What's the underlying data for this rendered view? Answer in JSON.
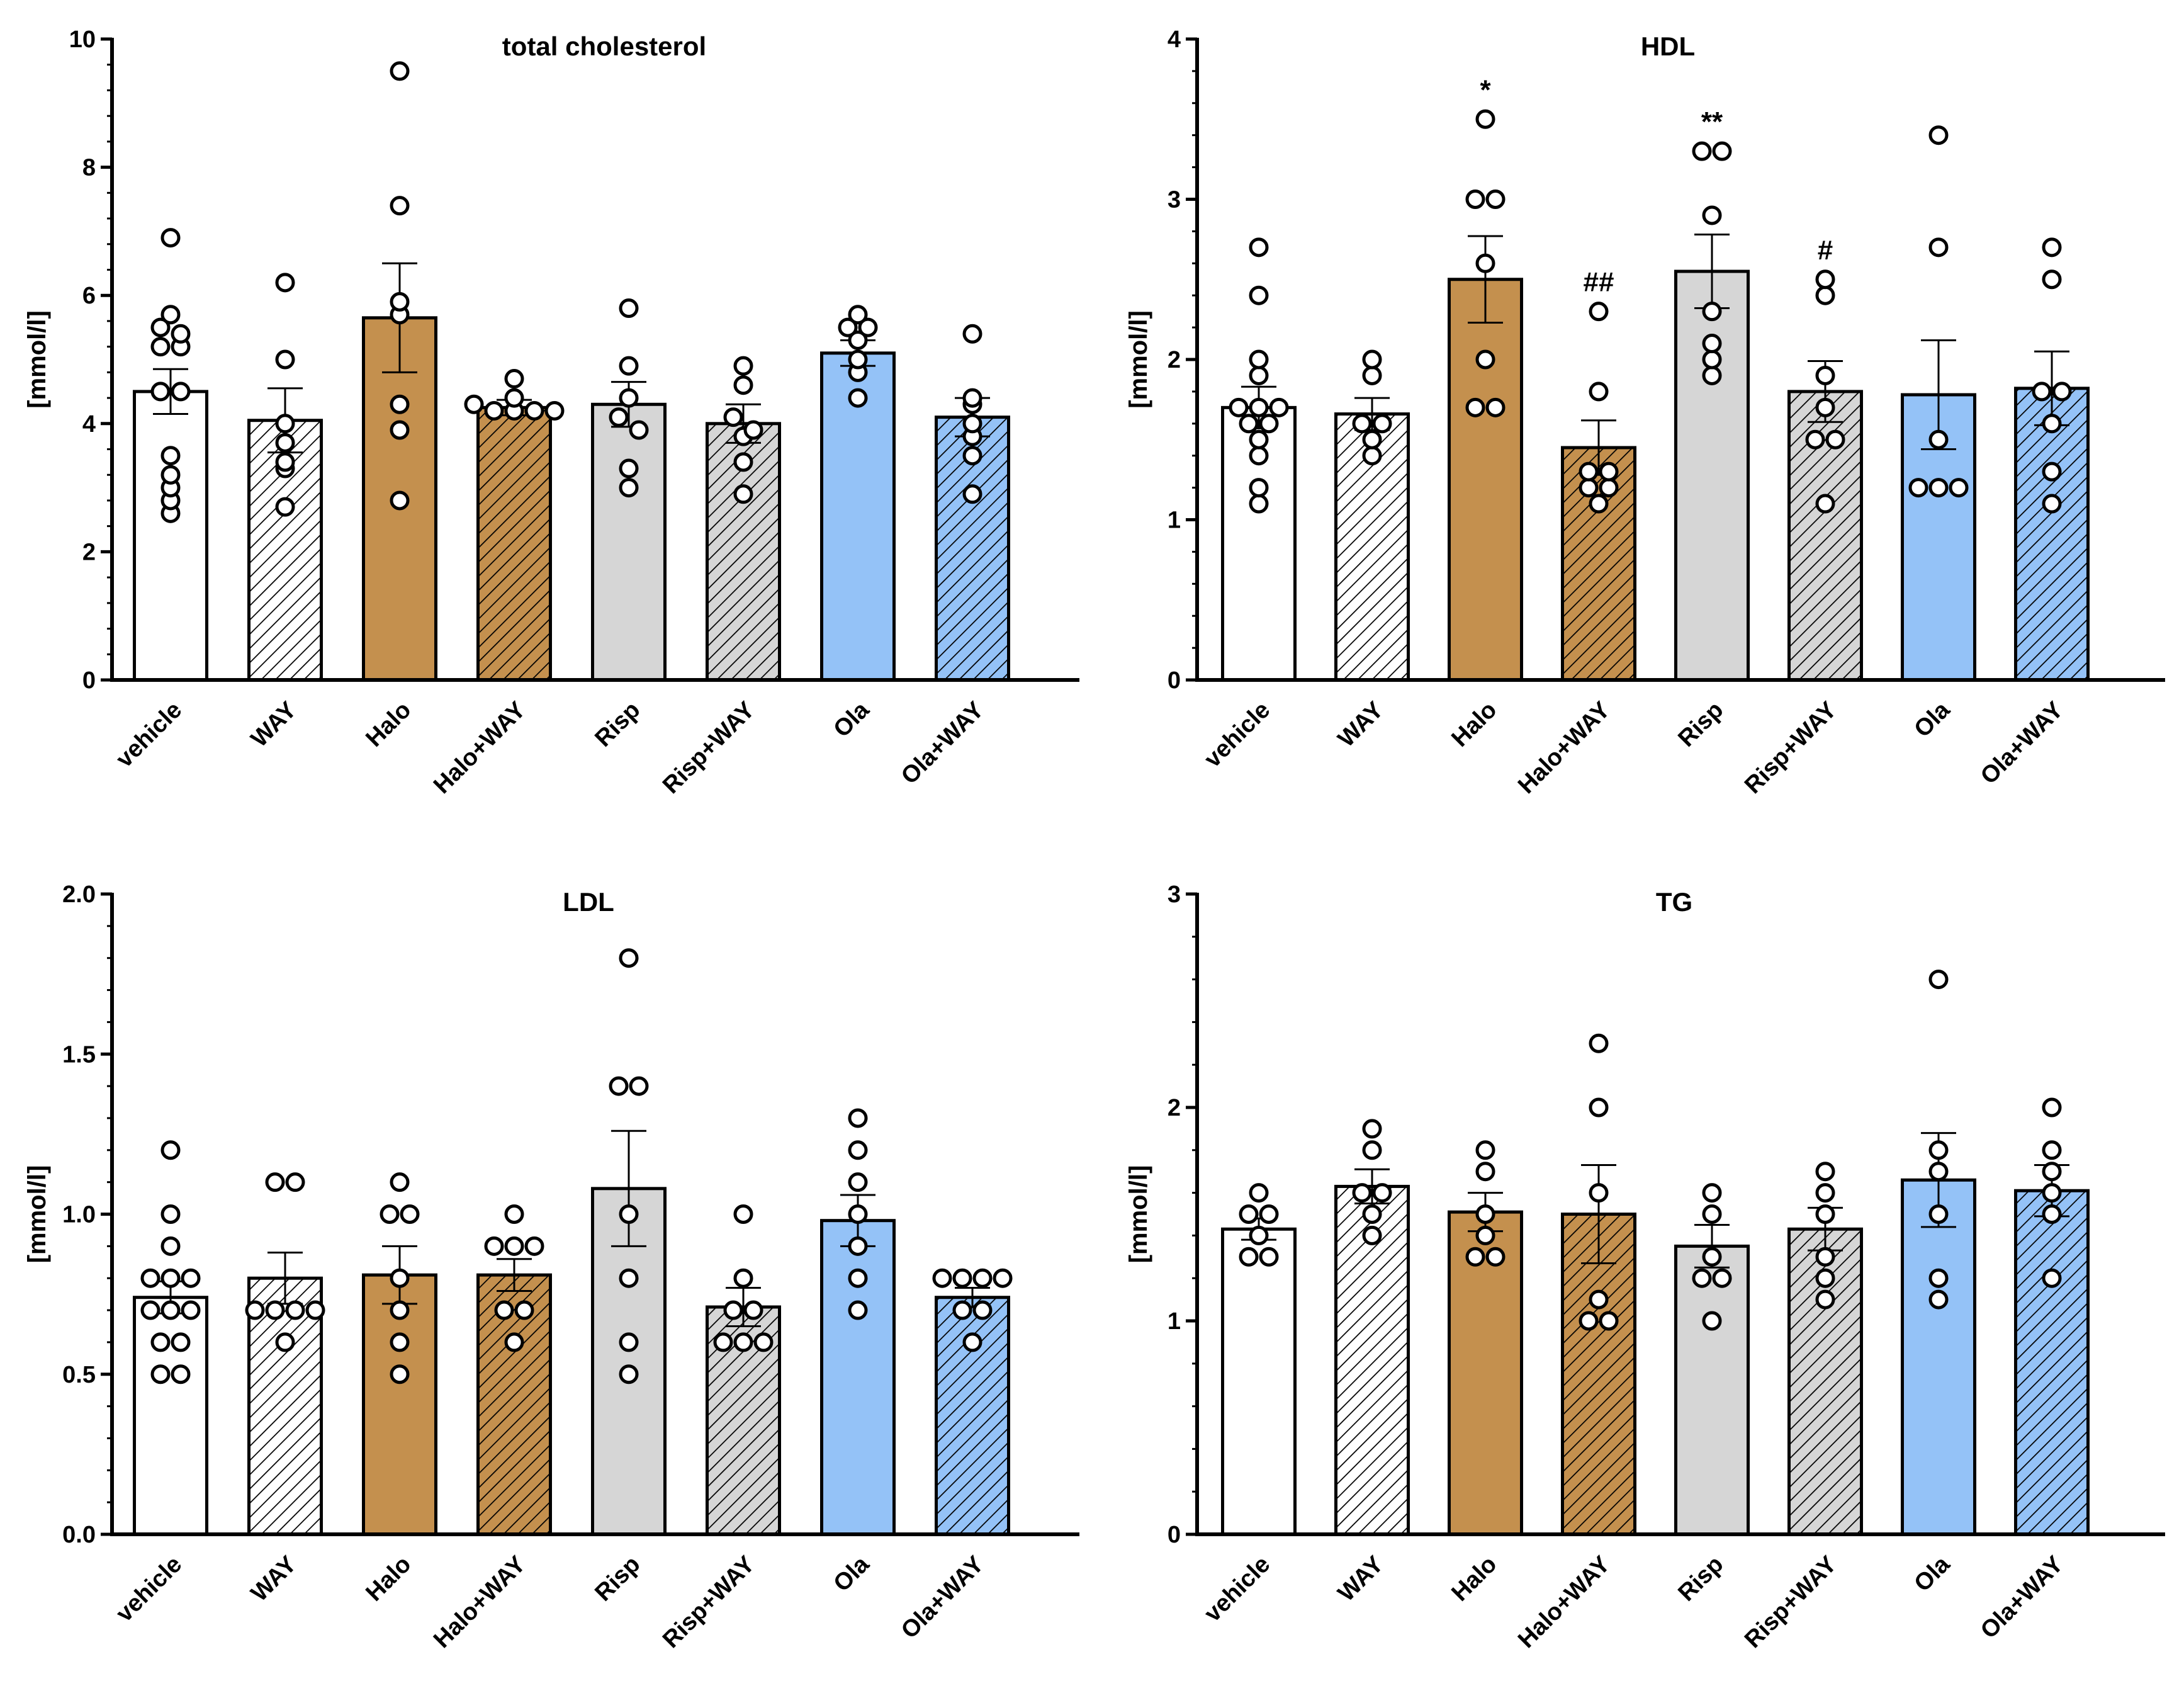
{
  "colors": {
    "vehicle": "#ffffff",
    "WAY": "#ffffff",
    "Halo": "#c4904e",
    "Halo+WAY": "#c4904e",
    "Risp": "#d6d6d6",
    "Risp+WAY": "#d6d6d6",
    "Ola": "#94c2f7",
    "Ola+WAY": "#94c2f7",
    "hatch": "#000000"
  },
  "chart_data": [
    {
      "type": "bar",
      "title": "total cholesterol",
      "ylabel": "[mmol/l]",
      "categories": [
        "vehicle",
        "WAY",
        "Halo",
        "Halo+WAY",
        "Risp",
        "Risp+WAY",
        "Ola",
        "Ola+WAY"
      ],
      "hatched": [
        false,
        true,
        false,
        true,
        false,
        true,
        false,
        true
      ],
      "ylim": [
        0,
        10
      ],
      "yticks": [
        0,
        2,
        4,
        6,
        8,
        10
      ],
      "ytick_labels": [
        "0",
        "2",
        "4",
        "6",
        "8",
        "10"
      ],
      "values": [
        4.5,
        4.05,
        5.65,
        4.25,
        4.3,
        4.0,
        5.1,
        4.1
      ],
      "sem": [
        0.35,
        0.5,
        0.85,
        0.12,
        0.35,
        0.3,
        0.2,
        0.3
      ],
      "points": [
        [
          6.9,
          5.7,
          5.5,
          5.4,
          5.2,
          5.2,
          4.5,
          4.5,
          3.5,
          3.2,
          3.0,
          2.8,
          2.6
        ],
        [
          6.2,
          5.0,
          4.0,
          3.7,
          3.4,
          3.3,
          2.7
        ],
        [
          9.5,
          7.4,
          5.9,
          5.7,
          4.3,
          3.9,
          2.8
        ],
        [
          4.7,
          4.4,
          4.3,
          4.2,
          4.2,
          4.2,
          4.2
        ],
        [
          5.8,
          4.9,
          4.4,
          4.1,
          3.9,
          3.3,
          3.0
        ],
        [
          4.9,
          4.6,
          4.1,
          3.9,
          3.8,
          3.4,
          2.9
        ],
        [
          5.7,
          5.5,
          5.5,
          5.3,
          5.0,
          4.8,
          4.4
        ],
        [
          5.4,
          4.4,
          4.3,
          4.0,
          3.8,
          3.5,
          2.9
        ]
      ],
      "annotations": [
        "",
        "",
        "",
        "",
        "",
        "",
        "",
        ""
      ]
    },
    {
      "type": "bar",
      "title": "HDL",
      "ylabel": "[mmol/l]",
      "categories": [
        "vehicle",
        "WAY",
        "Halo",
        "Halo+WAY",
        "Risp",
        "Risp+WAY",
        "Ola",
        "Ola+WAY"
      ],
      "hatched": [
        false,
        true,
        false,
        true,
        false,
        true,
        false,
        true
      ],
      "ylim": [
        0,
        4
      ],
      "yticks": [
        0,
        1,
        2,
        3,
        4
      ],
      "ytick_labels": [
        "0",
        "1",
        "2",
        "3",
        "4"
      ],
      "values": [
        1.7,
        1.66,
        2.5,
        1.45,
        2.55,
        1.8,
        1.78,
        1.82
      ],
      "sem": [
        0.13,
        0.1,
        0.27,
        0.17,
        0.23,
        0.19,
        0.34,
        0.23
      ],
      "points": [
        [
          2.7,
          2.4,
          2.0,
          1.9,
          1.7,
          1.7,
          1.7,
          1.6,
          1.6,
          1.5,
          1.4,
          1.2,
          1.1
        ],
        [
          2.0,
          1.9,
          1.6,
          1.6,
          1.5,
          1.4
        ],
        [
          3.5,
          3.0,
          3.0,
          2.6,
          2.0,
          1.7,
          1.7
        ],
        [
          2.3,
          1.8,
          1.3,
          1.3,
          1.2,
          1.2,
          1.1
        ],
        [
          3.3,
          3.3,
          2.9,
          2.3,
          2.1,
          2.0,
          1.9
        ],
        [
          2.5,
          2.4,
          1.9,
          1.7,
          1.5,
          1.5,
          1.1
        ],
        [
          3.4,
          2.7,
          1.5,
          1.2,
          1.2,
          1.2
        ],
        [
          2.7,
          2.5,
          1.8,
          1.8,
          1.6,
          1.3,
          1.1
        ]
      ],
      "annotations": [
        "",
        "",
        "*",
        "##",
        "**",
        "#",
        "",
        ""
      ]
    },
    {
      "type": "bar",
      "title": "LDL",
      "ylabel": "[mmol/l]",
      "categories": [
        "vehicle",
        "WAY",
        "Halo",
        "Halo+WAY",
        "Risp",
        "Risp+WAY",
        "Ola",
        "Ola+WAY"
      ],
      "hatched": [
        false,
        true,
        false,
        true,
        false,
        true,
        false,
        true
      ],
      "ylim": [
        0,
        2
      ],
      "yticks": [
        0,
        0.5,
        1.0,
        1.5,
        2.0
      ],
      "ytick_labels": [
        "0.0",
        "0.5",
        "1.0",
        "1.5",
        "2.0"
      ],
      "values": [
        0.74,
        0.8,
        0.81,
        0.81,
        1.08,
        0.71,
        0.98,
        0.74
      ],
      "sem": [
        0.05,
        0.08,
        0.09,
        0.05,
        0.18,
        0.06,
        0.08,
        0.03
      ],
      "points": [
        [
          1.2,
          1.0,
          0.9,
          0.8,
          0.8,
          0.8,
          0.7,
          0.7,
          0.7,
          0.6,
          0.6,
          0.5,
          0.5
        ],
        [
          1.1,
          1.1,
          0.7,
          0.7,
          0.7,
          0.7,
          0.6
        ],
        [
          1.1,
          1.0,
          1.0,
          0.8,
          0.7,
          0.6,
          0.5
        ],
        [
          1.0,
          0.9,
          0.9,
          0.9,
          0.7,
          0.7,
          0.6
        ],
        [
          1.8,
          1.4,
          1.4,
          1.0,
          0.8,
          0.6,
          0.5
        ],
        [
          1.0,
          0.8,
          0.7,
          0.7,
          0.6,
          0.6,
          0.6
        ],
        [
          1.3,
          1.2,
          1.1,
          1.0,
          0.9,
          0.8,
          0.7
        ],
        [
          0.8,
          0.8,
          0.8,
          0.8,
          0.7,
          0.7,
          0.6
        ]
      ],
      "annotations": [
        "",
        "",
        "",
        "",
        "",
        "",
        "",
        ""
      ]
    },
    {
      "type": "bar",
      "title": "TG",
      "ylabel": "[mmol/l]",
      "categories": [
        "vehicle",
        "WAY",
        "Halo",
        "Halo+WAY",
        "Risp",
        "Risp+WAY",
        "Ola",
        "Ola+WAY"
      ],
      "hatched": [
        false,
        true,
        false,
        true,
        false,
        true,
        false,
        true
      ],
      "ylim": [
        0,
        3
      ],
      "yticks": [
        0,
        1,
        2,
        3
      ],
      "ytick_labels": [
        "0",
        "1",
        "2",
        "3"
      ],
      "values": [
        1.43,
        1.63,
        1.51,
        1.5,
        1.35,
        1.43,
        1.66,
        1.61
      ],
      "sem": [
        0.05,
        0.08,
        0.09,
        0.23,
        0.1,
        0.1,
        0.22,
        0.12
      ],
      "points": [
        [
          1.6,
          1.5,
          1.5,
          1.4,
          1.3,
          1.3
        ],
        [
          1.9,
          1.8,
          1.6,
          1.6,
          1.5,
          1.4
        ],
        [
          1.8,
          1.7,
          1.5,
          1.4,
          1.3,
          1.3
        ],
        [
          2.3,
          2.0,
          1.6,
          1.1,
          1.0,
          1.0
        ],
        [
          1.6,
          1.5,
          1.3,
          1.2,
          1.2,
          1.0
        ],
        [
          1.7,
          1.6,
          1.5,
          1.3,
          1.2,
          1.1
        ],
        [
          2.6,
          1.8,
          1.7,
          1.5,
          1.2,
          1.1
        ],
        [
          2.0,
          1.8,
          1.7,
          1.6,
          1.5,
          1.2
        ]
      ],
      "annotations": [
        "",
        "",
        "",
        "",
        "",
        "",
        "",
        ""
      ]
    }
  ]
}
